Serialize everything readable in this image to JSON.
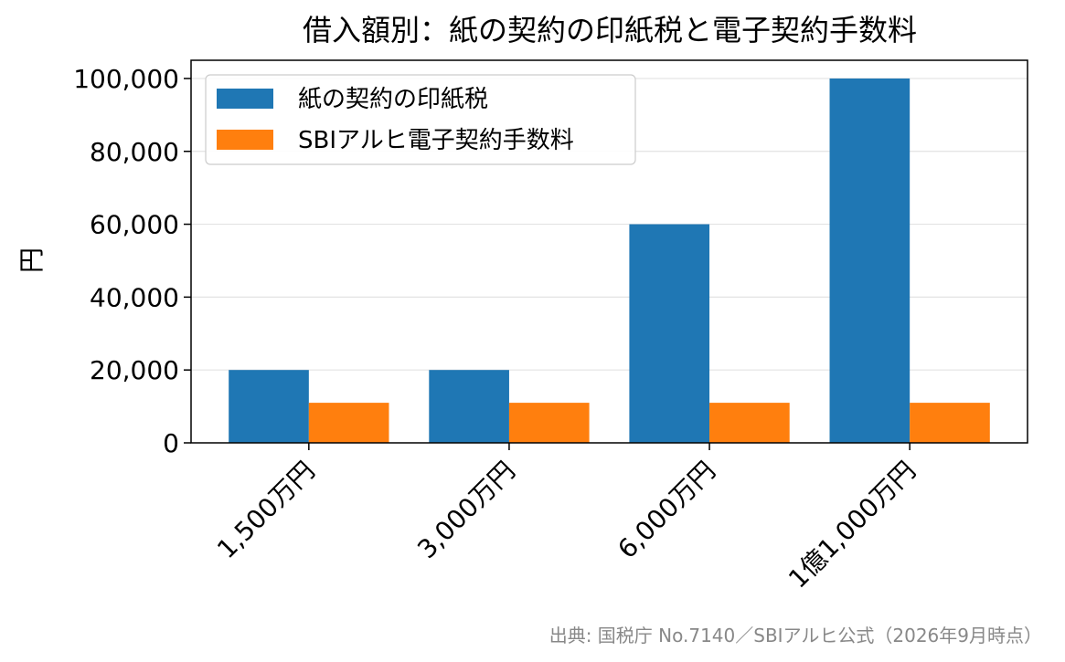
{
  "chart_data": {
    "type": "bar",
    "title": "借入額別：紙の契約の印紙税と電子契約手数料",
    "xlabel": "",
    "ylabel": "円",
    "categories": [
      "1,500万円",
      "3,000万円",
      "6,000万円",
      "1億1,000万円"
    ],
    "series": [
      {
        "name": "紙の契約の印紙税",
        "values": [
          20000,
          20000,
          60000,
          100000
        ],
        "color": "#1f77b4"
      },
      {
        "name": "SBIアルヒ電子契約手数料",
        "values": [
          11000,
          11000,
          11000,
          11000
        ],
        "color": "#ff7f0e"
      }
    ],
    "ylim": [
      0,
      105000
    ],
    "yticks": [
      0,
      20000,
      40000,
      60000,
      80000,
      100000
    ],
    "ytick_labels": [
      "0",
      "20,000",
      "40,000",
      "60,000",
      "80,000",
      "100,000"
    ],
    "grid": "y",
    "legend_position": "top-left",
    "source": "出典: 国税庁 No.7140／SBIアルヒ公式（2026年9月時点）"
  }
}
